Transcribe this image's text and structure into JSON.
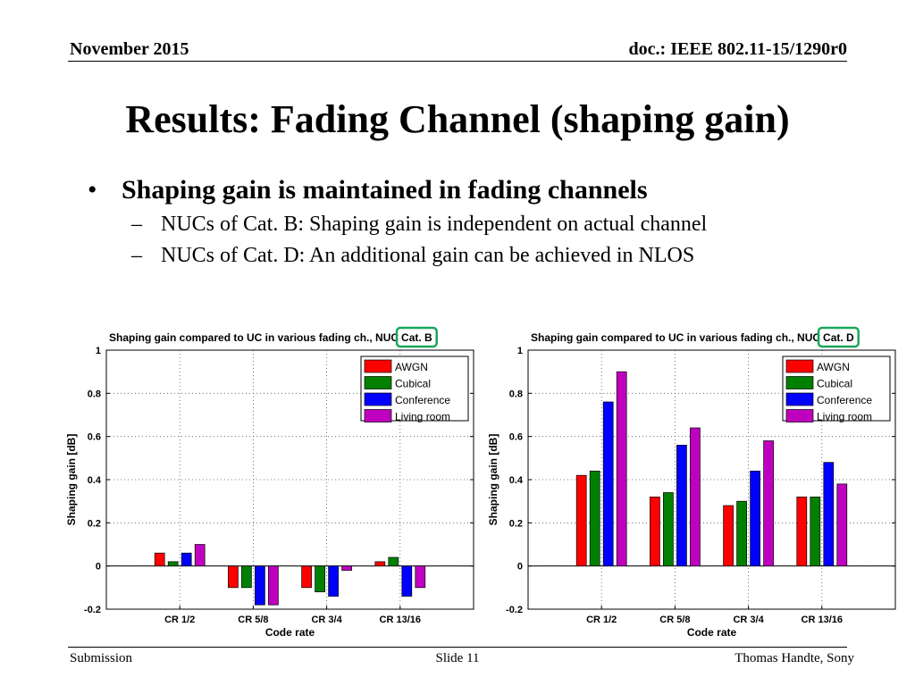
{
  "header": {
    "date": "November 2015",
    "doc_id": "doc.: IEEE 802.11-15/1290r0"
  },
  "title": "Results: Fading Channel (shaping gain)",
  "bullets": {
    "main": "Shaping gain is maintained in fading channels",
    "sub": [
      "NUCs of Cat. B: Shaping gain is independent on actual channel",
      "NUCs of Cat. D: An additional gain can be achieved in NLOS"
    ]
  },
  "footer": {
    "left": "Submission",
    "center": "Slide 11",
    "right": "Thomas Handte, Sony"
  },
  "chart_data": [
    {
      "type": "bar",
      "title": "Shaping gain compared to UC in various fading ch., NUC",
      "title_highlight": "Cat. B",
      "highlight_color": "#1aa65a",
      "xlabel": "Code rate",
      "ylabel": "Shaping gain [dB]",
      "ylim": [
        -0.2,
        1
      ],
      "yticks": [
        "-0.2",
        "0",
        "0.2",
        "0.4",
        "0.6",
        "0.8",
        "1"
      ],
      "grid": true,
      "legend_position": "top-right",
      "categories": [
        "CR 1/2",
        "CR 5/8",
        "CR 3/4",
        "CR 13/16"
      ],
      "series": [
        {
          "name": "AWGN",
          "color": "#ff0000",
          "values": [
            0.06,
            -0.1,
            -0.1,
            0.02
          ]
        },
        {
          "name": "Cubical",
          "color": "#008000",
          "values": [
            0.02,
            -0.1,
            -0.12,
            0.04
          ]
        },
        {
          "name": "Conference",
          "color": "#0000ff",
          "values": [
            0.06,
            -0.18,
            -0.14,
            -0.14
          ]
        },
        {
          "name": "Living room",
          "color": "#bf00bf",
          "values": [
            0.1,
            -0.18,
            -0.02,
            -0.1
          ]
        }
      ]
    },
    {
      "type": "bar",
      "title": "Shaping gain compared to UC in various fading ch., NUC",
      "title_highlight": "Cat. D",
      "highlight_color": "#1aa65a",
      "xlabel": "Code rate",
      "ylabel": "Shaping gain [dB]",
      "ylim": [
        -0.2,
        1
      ],
      "yticks": [
        "-0.2",
        "0",
        "0.2",
        "0.4",
        "0.6",
        "0.8",
        "1"
      ],
      "grid": true,
      "legend_position": "top-right",
      "categories": [
        "CR 1/2",
        "CR 5/8",
        "CR 3/4",
        "CR 13/16"
      ],
      "series": [
        {
          "name": "AWGN",
          "color": "#ff0000",
          "values": [
            0.42,
            0.32,
            0.28,
            0.32
          ]
        },
        {
          "name": "Cubical",
          "color": "#008000",
          "values": [
            0.44,
            0.34,
            0.3,
            0.32
          ]
        },
        {
          "name": "Conference",
          "color": "#0000ff",
          "values": [
            0.76,
            0.56,
            0.44,
            0.48
          ]
        },
        {
          "name": "Living room",
          "color": "#bf00bf",
          "values": [
            0.9,
            0.64,
            0.58,
            0.38
          ]
        }
      ]
    }
  ]
}
